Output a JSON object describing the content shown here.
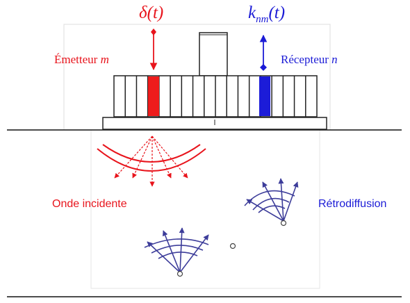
{
  "labels": {
    "delta": "δ(t)",
    "knm_base": "k",
    "knm_sub": "nm",
    "knm_arg": "(t)",
    "emetteur_text": "Émetteur ",
    "emetteur_var": "m",
    "recepteur_text": "Récepteur ",
    "recepteur_var": "n",
    "onde": "Onde incidente",
    "retro": "Rétrodiffusion"
  },
  "colors": {
    "emitter": "#e8141c",
    "receiver": "#1b1bd6",
    "scatter": "#3d3d9a",
    "outline": "#222222"
  }
}
